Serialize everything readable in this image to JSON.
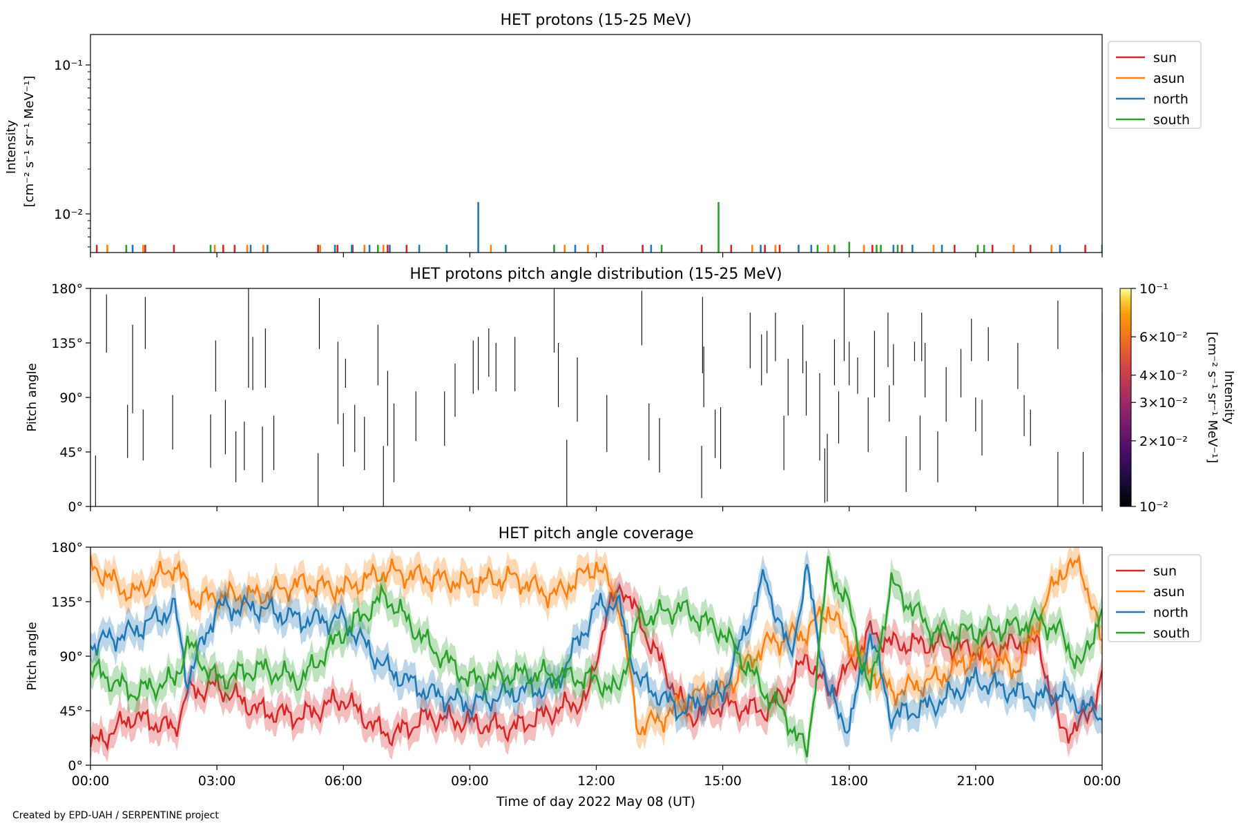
{
  "figure": {
    "credit": "Created by EPD-UAH / SERPENTINE project",
    "x_axis": {
      "label": "Time of day 2022 May 08 (UT)",
      "range_hours": [
        0,
        24
      ],
      "ticks": [
        0,
        3,
        6,
        9,
        12,
        15,
        18,
        21,
        24
      ],
      "tick_labels": [
        "00:00",
        "03:00",
        "06:00",
        "09:00",
        "12:00",
        "15:00",
        "18:00",
        "21:00",
        "00:00"
      ]
    },
    "series_colors": {
      "sun": "#d62728",
      "asun": "#ff7f0e",
      "north": "#1f77b4",
      "south": "#2ca02c"
    }
  },
  "chart_data": [
    {
      "type": "line",
      "title": "HET protons (15-25 MeV)",
      "ylabel_line1": "Intensity",
      "ylabel_line2": "[cm⁻² s⁻¹ sr⁻¹ MeV⁻¹]",
      "yscale": "log",
      "ylim": [
        0.0055,
        0.16
      ],
      "yticks": [
        {
          "value": 0.01,
          "label": "10⁻²"
        },
        {
          "value": 0.1,
          "label": "10⁻¹"
        }
      ],
      "legend_position": "outside-right-top",
      "legend": [
        "sun",
        "asun",
        "north",
        "south"
      ],
      "baseline": 0.0055,
      "series": [
        {
          "name": "sun",
          "color": "#d62728",
          "x": [
            0.15,
            1.3,
            1.98,
            3.15,
            3.42,
            5.4,
            5.86,
            6.22,
            7.05,
            7.5,
            8.45,
            12.15,
            13.1,
            14.5,
            15.2,
            16.0,
            16.35,
            18.55,
            19.25,
            20.5,
            21.4,
            22.3,
            23.6
          ],
          "y": [
            0.0062,
            0.0062,
            0.0062,
            0.0062,
            0.0062,
            0.0062,
            0.0062,
            0.0062,
            0.0062,
            0.0062,
            0.0062,
            0.0062,
            0.0062,
            0.0062,
            0.0062,
            0.0062,
            0.0062,
            0.0062,
            0.0062,
            0.0062,
            0.0062,
            0.0062,
            0.0062
          ]
        },
        {
          "name": "asun",
          "color": "#ff7f0e",
          "x": [
            0.4,
            1.25,
            2.95,
            3.72,
            4.1,
            5.45,
            6.5,
            6.95,
            9.5,
            11.25,
            11.8,
            15.7,
            16.25,
            17.5,
            18.35,
            20.0,
            21.9,
            22.8
          ],
          "y": [
            0.0062,
            0.0062,
            0.0062,
            0.0062,
            0.0062,
            0.0062,
            0.0062,
            0.0062,
            0.0062,
            0.0062,
            0.0062,
            0.0062,
            0.0062,
            0.0062,
            0.0062,
            0.0062,
            0.0062,
            0.0062
          ]
        },
        {
          "name": "north",
          "color": "#1f77b4",
          "x": [
            1.0,
            3.8,
            4.2,
            5.8,
            6.2,
            6.62,
            7.1,
            7.8,
            8.45,
            9.2,
            9.85,
            11.5,
            13.3,
            15.9,
            16.8,
            17.1,
            19.05,
            19.5,
            20.2,
            23.0
          ],
          "y": [
            0.0062,
            0.0062,
            0.0062,
            0.0062,
            0.0062,
            0.0062,
            0.0062,
            0.0062,
            0.0062,
            0.012,
            0.0062,
            0.0062,
            0.0062,
            0.0062,
            0.0062,
            0.0062,
            0.0062,
            0.0062,
            0.0062,
            0.0062
          ]
        },
        {
          "name": "south",
          "color": "#2ca02c",
          "x": [
            0.85,
            2.85,
            6.82,
            11.0,
            13.55,
            14.9,
            17.25,
            17.65,
            18.0,
            18.65,
            18.75,
            19.15,
            21.05,
            21.2,
            24.0
          ],
          "y": [
            0.0062,
            0.0062,
            0.0062,
            0.0062,
            0.0062,
            0.012,
            0.0062,
            0.0062,
            0.0065,
            0.0062,
            0.0062,
            0.0062,
            0.0062,
            0.0062,
            0.0062
          ]
        }
      ]
    },
    {
      "type": "heatmap",
      "title": "HET protons pitch angle distribution (15-25 MeV)",
      "ylabel": "Pitch angle",
      "ylim": [
        0,
        180
      ],
      "yticks": [
        0,
        45,
        90,
        135,
        180
      ],
      "ytick_labels": [
        "0°",
        "45°",
        "90°",
        "135°",
        "180°"
      ],
      "colorbar": {
        "label_line1": "Intensity",
        "label_line2": "[cm⁻² s⁻¹ sr⁻¹ MeV⁻¹]",
        "scale": "log",
        "range": [
          0.01,
          0.1
        ],
        "ticks": [
          {
            "value": 0.01,
            "label": "10⁻²"
          },
          {
            "value": 0.02,
            "label": "2×10⁻²"
          },
          {
            "value": 0.03,
            "label": "3×10⁻²"
          },
          {
            "value": 0.04,
            "label": "4×10⁻²"
          },
          {
            "value": 0.06,
            "label": "6×10⁻²"
          },
          {
            "value": 0.1,
            "label": "10⁻¹"
          }
        ]
      },
      "segments": [
        [
          0.12,
          0,
          42
        ],
        [
          0.38,
          127,
          175
        ],
        [
          0.88,
          40,
          84
        ],
        [
          1.0,
          77,
          150
        ],
        [
          1.25,
          38,
          80
        ],
        [
          1.3,
          130,
          173
        ],
        [
          1.95,
          47,
          92
        ],
        [
          2.85,
          32,
          76
        ],
        [
          2.97,
          95,
          137
        ],
        [
          3.2,
          43,
          88
        ],
        [
          3.45,
          20,
          62
        ],
        [
          3.65,
          30,
          70
        ],
        [
          3.75,
          98,
          180
        ],
        [
          3.85,
          140,
          96
        ],
        [
          4.08,
          20,
          66
        ],
        [
          4.15,
          98,
          147
        ],
        [
          4.35,
          30,
          75
        ],
        [
          5.4,
          0,
          44
        ],
        [
          5.43,
          172,
          130
        ],
        [
          5.87,
          68,
          136
        ],
        [
          6.05,
          122,
          98
        ],
        [
          6.0,
          33,
          77
        ],
        [
          6.27,
          45,
          84
        ],
        [
          6.5,
          30,
          74
        ],
        [
          6.82,
          100,
          150
        ],
        [
          6.95,
          0,
          50
        ],
        [
          7.05,
          50,
          112
        ],
        [
          7.2,
          20,
          85
        ],
        [
          7.72,
          54,
          95
        ],
        [
          8.4,
          50,
          95
        ],
        [
          8.65,
          74,
          118
        ],
        [
          9.08,
          93,
          137
        ],
        [
          9.2,
          96,
          140
        ],
        [
          9.45,
          107,
          147
        ],
        [
          9.62,
          95,
          135
        ],
        [
          10.07,
          95,
          140
        ],
        [
          11.0,
          127,
          180
        ],
        [
          11.1,
          82,
          135
        ],
        [
          11.3,
          0,
          55
        ],
        [
          11.55,
          70,
          123
        ],
        [
          12.25,
          45,
          92
        ],
        [
          13.08,
          133,
          178
        ],
        [
          13.25,
          38,
          85
        ],
        [
          13.5,
          28,
          73
        ],
        [
          14.5,
          7,
          50
        ],
        [
          14.52,
          110,
          173
        ],
        [
          14.55,
          82,
          132
        ],
        [
          14.82,
          40,
          80
        ],
        [
          14.95,
          31,
          82
        ],
        [
          15.65,
          114,
          160
        ],
        [
          15.92,
          100,
          142
        ],
        [
          16.05,
          110,
          145
        ],
        [
          16.25,
          120,
          160
        ],
        [
          16.45,
          30,
          75
        ],
        [
          16.55,
          75,
          122
        ],
        [
          16.9,
          110,
          150
        ],
        [
          16.98,
          75,
          120
        ],
        [
          17.3,
          38,
          110
        ],
        [
          17.65,
          100,
          138
        ],
        [
          17.75,
          52,
          95
        ],
        [
          17.42,
          3,
          48
        ],
        [
          17.48,
          4,
          60
        ],
        [
          17.88,
          120,
          180
        ],
        [
          18.0,
          100,
          136
        ],
        [
          18.2,
          93,
          123
        ],
        [
          18.45,
          45,
          90
        ],
        [
          18.6,
          90,
          145
        ],
        [
          18.92,
          115,
          160
        ],
        [
          18.95,
          70,
          100
        ],
        [
          19.05,
          100,
          134
        ],
        [
          19.35,
          12,
          58
        ],
        [
          19.55,
          120,
          136
        ],
        [
          19.68,
          30,
          75
        ],
        [
          19.72,
          160,
          120
        ],
        [
          19.8,
          90,
          135
        ],
        [
          20.1,
          20,
          62
        ],
        [
          20.3,
          70,
          115
        ],
        [
          20.65,
          90,
          130
        ],
        [
          20.9,
          120,
          155
        ],
        [
          21.0,
          62,
          90
        ],
        [
          21.15,
          42,
          88
        ],
        [
          21.3,
          120,
          148
        ],
        [
          22.0,
          97,
          135
        ],
        [
          22.15,
          58,
          92
        ],
        [
          22.3,
          50,
          80
        ],
        [
          22.95,
          130,
          170
        ],
        [
          22.95,
          0,
          45
        ],
        [
          23.55,
          2,
          45
        ],
        [
          24.0,
          110,
          160
        ]
      ]
    },
    {
      "type": "line",
      "title": "HET pitch angle coverage",
      "ylabel": "Pitch angle",
      "ylim": [
        0,
        180
      ],
      "yticks": [
        0,
        45,
        90,
        135,
        180
      ],
      "ytick_labels": [
        "0°",
        "45°",
        "90°",
        "135°",
        "180°"
      ],
      "legend_position": "outside-right-top",
      "legend": [
        "sun",
        "asun",
        "north",
        "south"
      ],
      "band_halfwidth": 12,
      "series": [
        {
          "name": "sun",
          "color": "#d62728",
          "x": [
            0,
            1,
            2,
            2.3,
            3,
            4,
            5,
            6,
            6.8,
            7.2,
            8,
            9,
            10,
            11,
            11.8,
            12.2,
            12.6,
            13.3,
            14.2,
            15,
            16,
            16.5,
            17,
            17.5,
            18,
            18.5,
            19,
            20,
            21,
            22,
            22.5,
            23,
            23.4,
            23.7,
            24
          ],
          "y": [
            15,
            40,
            30,
            60,
            65,
            45,
            40,
            55,
            30,
            25,
            40,
            35,
            30,
            45,
            55,
            120,
            150,
            100,
            40,
            50,
            45,
            60,
            90,
            60,
            80,
            110,
            100,
            100,
            95,
            100,
            100,
            30,
            30,
            45,
            70
          ]
        },
        {
          "name": "asun",
          "color": "#ff7f0e",
          "x": [
            0,
            1,
            2,
            2.5,
            3,
            4,
            5,
            6,
            7,
            8,
            9,
            10,
            11,
            12,
            12.5,
            13,
            13.6,
            14.5,
            15,
            16,
            17,
            17.5,
            18,
            19,
            20,
            21,
            22,
            23,
            23.5,
            24
          ],
          "y": [
            165,
            140,
            165,
            135,
            140,
            140,
            150,
            145,
            160,
            155,
            150,
            155,
            140,
            165,
            140,
            30,
            40,
            60,
            60,
            100,
            110,
            130,
            100,
            60,
            70,
            90,
            80,
            160,
            165,
            100
          ]
        },
        {
          "name": "north",
          "color": "#1f77b4",
          "x": [
            0,
            1,
            2,
            2.3,
            3,
            4,
            5,
            6,
            7,
            8,
            9,
            10,
            11,
            12,
            12.5,
            13,
            14,
            15,
            16,
            16.6,
            17,
            17.5,
            18,
            18.5,
            19,
            20,
            21,
            22,
            22.5,
            23,
            24
          ],
          "y": [
            100,
            110,
            130,
            70,
            130,
            130,
            120,
            120,
            80,
            60,
            50,
            60,
            65,
            130,
            135,
            70,
            45,
            60,
            155,
            90,
            160,
            60,
            30,
            110,
            40,
            50,
            70,
            60,
            55,
            60,
            40
          ]
        },
        {
          "name": "south",
          "color": "#2ca02c",
          "x": [
            0,
            1,
            2,
            2.3,
            3,
            4,
            5,
            6,
            7,
            8,
            9,
            10,
            11,
            12,
            12.5,
            13,
            14,
            15,
            16,
            16.5,
            17,
            17.5,
            18,
            18.5,
            19,
            20,
            21,
            22,
            22.5,
            23,
            23.5,
            24
          ],
          "y": [
            80,
            60,
            70,
            100,
            70,
            80,
            70,
            110,
            140,
            100,
            70,
            75,
            75,
            70,
            60,
            120,
            130,
            110,
            60,
            40,
            10,
            165,
            130,
            60,
            150,
            110,
            110,
            115,
            120,
            110,
            80,
            130
          ]
        }
      ]
    }
  ]
}
